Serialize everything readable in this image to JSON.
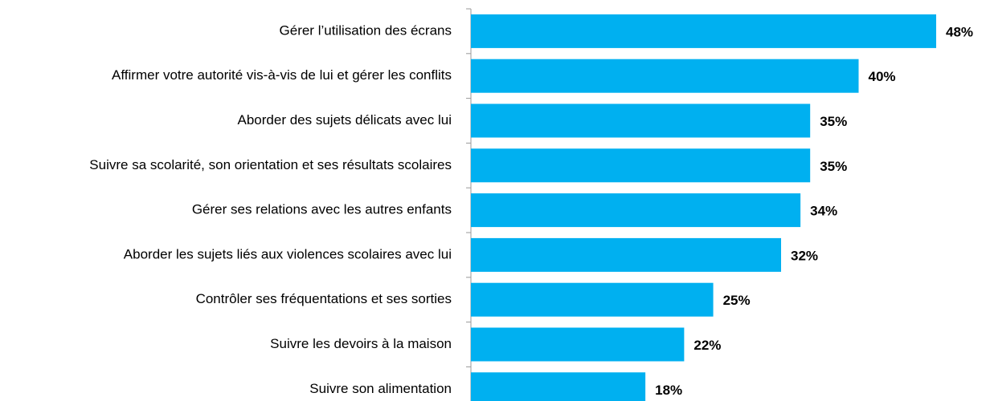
{
  "chart_data": {
    "type": "bar",
    "orientation": "horizontal",
    "categories": [
      "Gérer l’utilisation des écrans",
      "Affirmer votre autorité vis-à-vis de lui et gérer les conflits",
      "Aborder des sujets délicats avec lui",
      "Suivre sa scolarité, son orientation et ses résultats scolaires",
      "Gérer ses relations avec les autres enfants",
      "Aborder les sujets liés aux violences scolaires avec lui",
      "Contrôler ses fréquentations et ses sorties",
      "Suivre les devoirs à la maison",
      "Suivre son alimentation"
    ],
    "values": [
      48,
      40,
      35,
      35,
      34,
      32,
      25,
      22,
      18
    ],
    "value_labels": [
      "48%",
      "40%",
      "35%",
      "35%",
      "34%",
      "32%",
      "25%",
      "22%",
      "18%"
    ],
    "color": "#00b0f0"
  }
}
